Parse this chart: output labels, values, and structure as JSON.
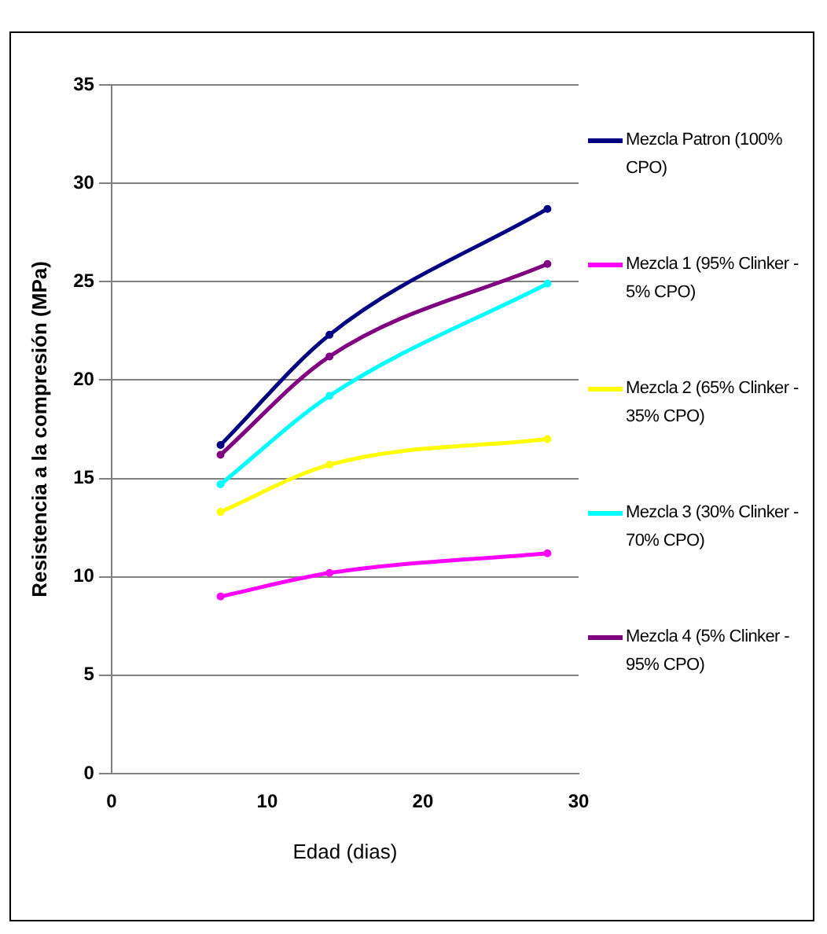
{
  "chart_data": {
    "type": "line",
    "xlabel": "Edad (dias)",
    "ylabel": "Resistencia a la compresión (MPa)",
    "x": [
      7,
      14,
      28
    ],
    "series": [
      {
        "name": "Mezcla Patron (100% CPO)",
        "color": "#000080",
        "values": [
          16.7,
          22.3,
          28.7
        ]
      },
      {
        "name": "Mezcla 1 (95% Clinker - 5% CPO)",
        "color": "#ff00ff",
        "values": [
          9.0,
          10.2,
          11.2
        ]
      },
      {
        "name": "Mezcla 2 (65% Clinker - 35% CPO)",
        "color": "#ffff00",
        "values": [
          13.3,
          15.7,
          17.0
        ]
      },
      {
        "name": "Mezcla 3 (30% Clinker - 70% CPO)",
        "color": "#00ffff",
        "values": [
          14.7,
          19.2,
          24.9
        ]
      },
      {
        "name": "Mezcla 4 (5% Clinker - 95% CPO)",
        "color": "#800080",
        "values": [
          16.2,
          21.2,
          25.9
        ]
      }
    ],
    "xlim": [
      0,
      30
    ],
    "xticks": [
      0,
      10,
      20,
      30
    ],
    "ylim": [
      0,
      35
    ],
    "yticks": [
      0,
      5,
      10,
      15,
      20,
      25,
      30,
      35
    ],
    "grid": "y",
    "legend": "right",
    "marker": "circle",
    "line_style": "solid"
  }
}
